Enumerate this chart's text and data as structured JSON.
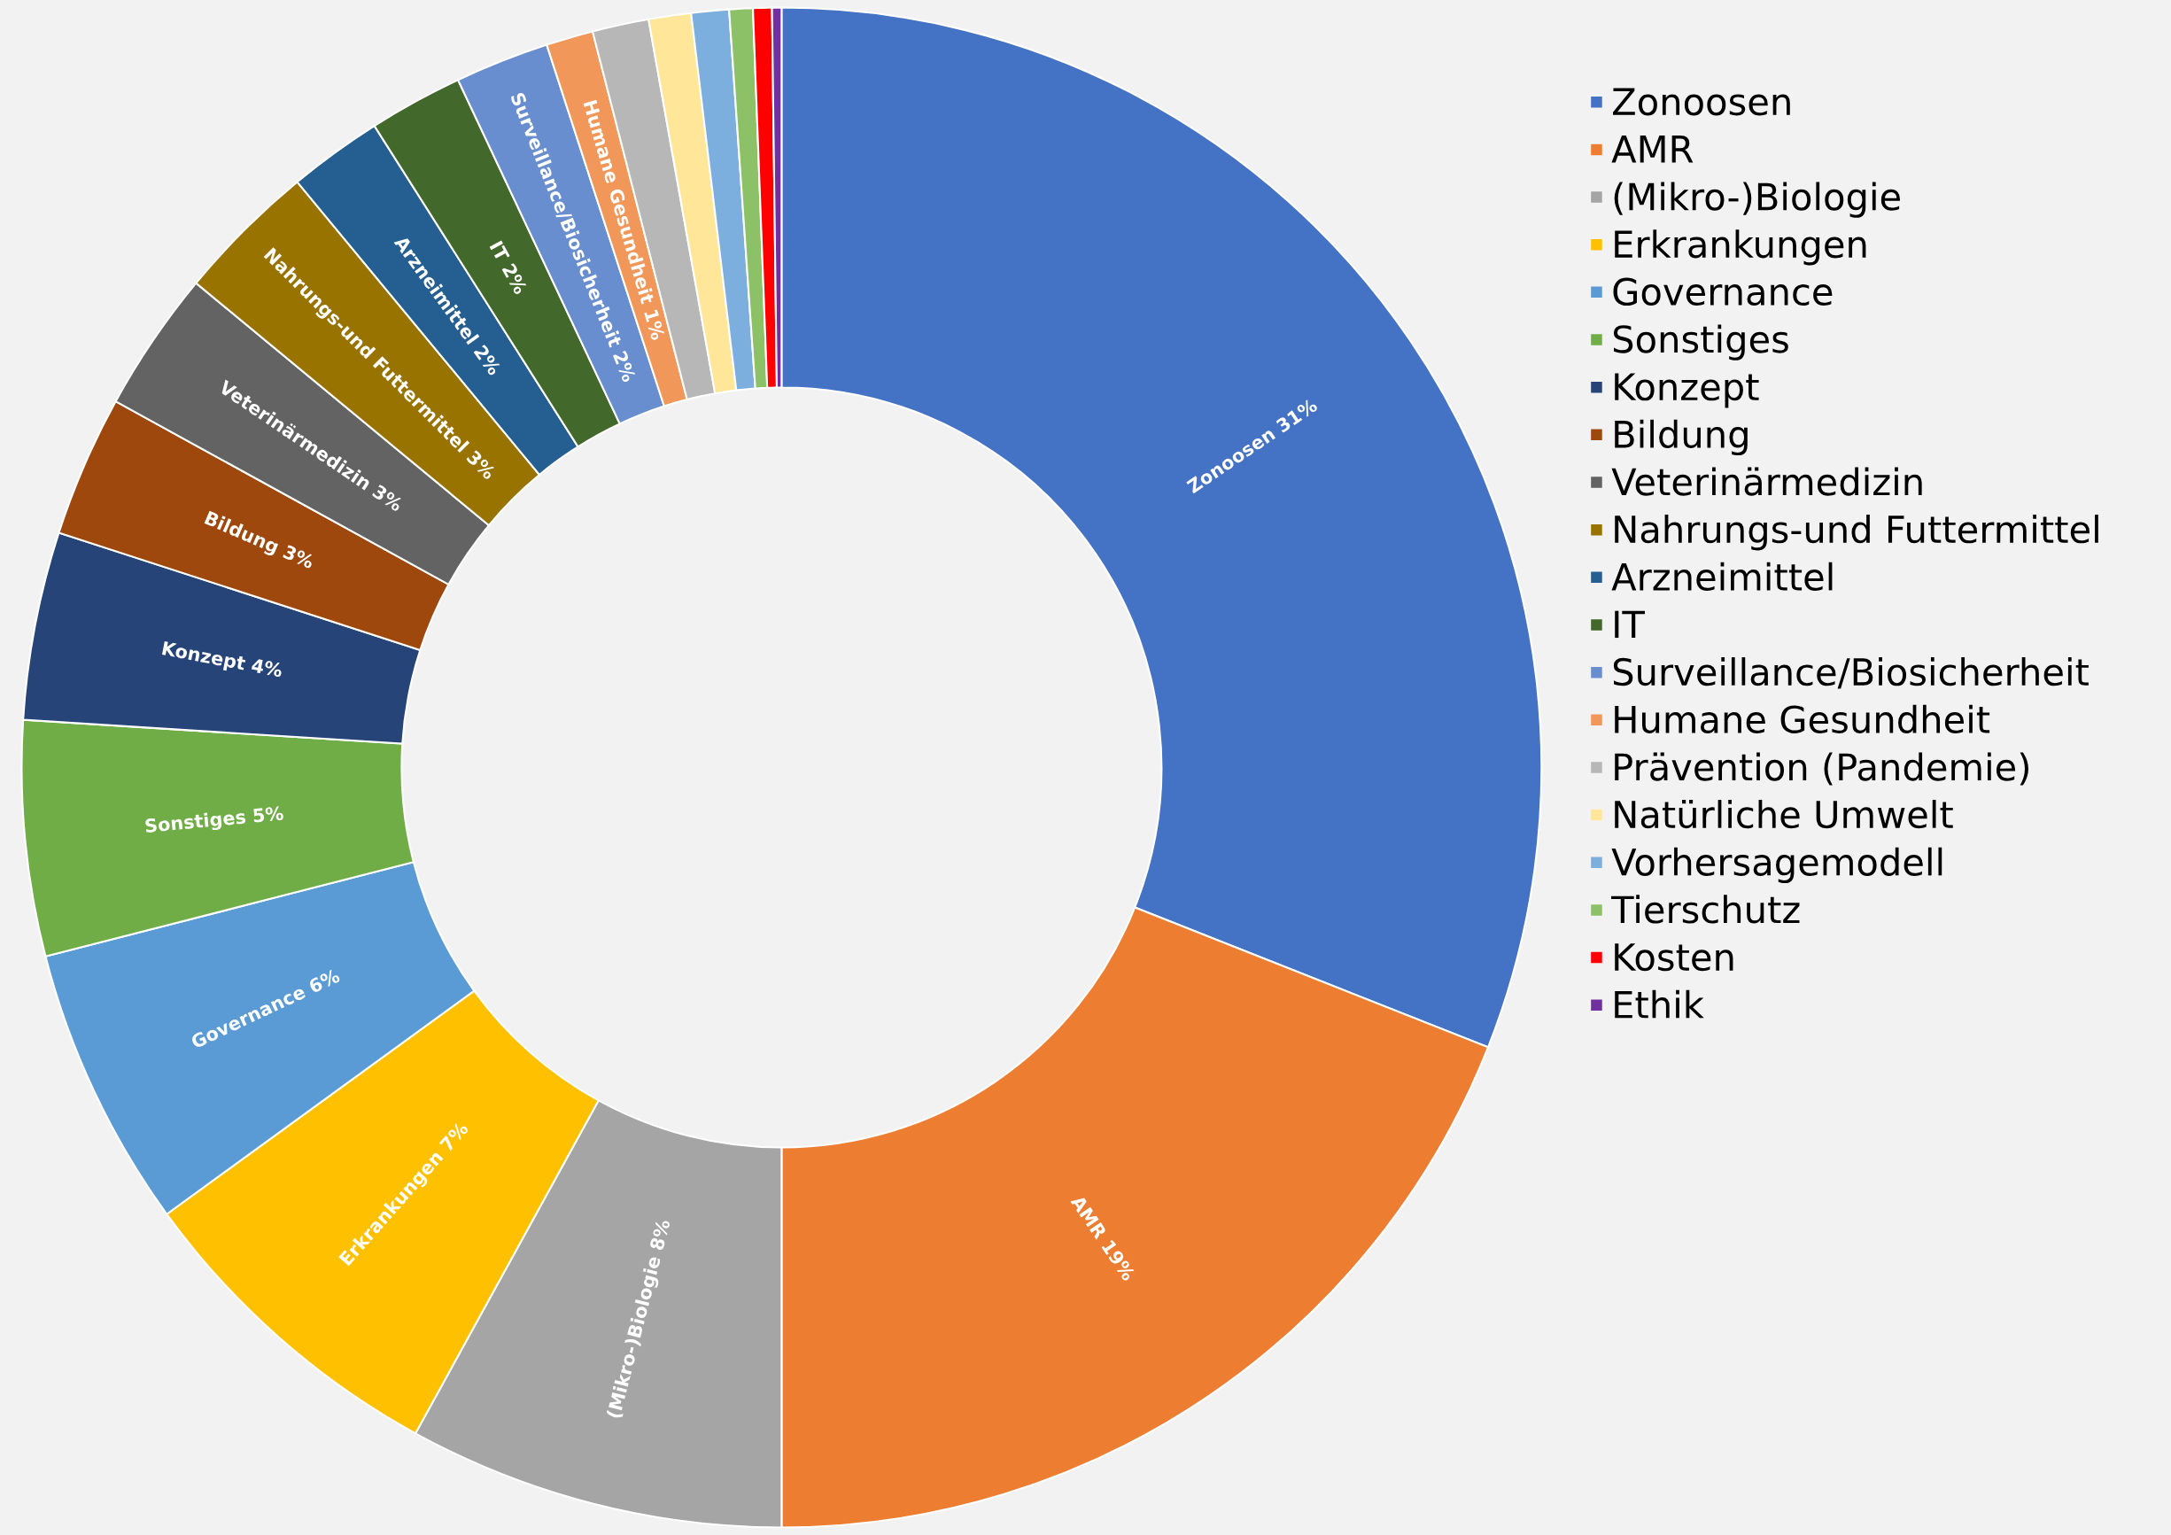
{
  "chart_data": {
    "type": "donut",
    "categories": [
      "Zonoosen",
      "AMR",
      "(Mikro-)Biologie",
      "Erkrankungen",
      "Governance",
      "Sonstiges",
      "Konzept",
      "Bildung",
      "Veterinärmedizin",
      "Nahrungs-und Futtermittel",
      "Arzneimittel",
      "IT",
      "Surveillance/Biosicherheit",
      "Humane Gesundheit",
      "Prävention (Pandemie)",
      "Natürliche Umwelt",
      "Vorhersagemodell",
      "Tierschutz",
      "Kosten",
      "Ethik"
    ],
    "values": [
      31,
      19,
      8,
      7,
      6,
      5,
      4,
      3,
      3,
      3,
      2,
      2,
      2,
      1,
      1.2,
      0.9,
      0.8,
      0.5,
      0.4,
      0.2
    ],
    "colors": [
      "#4472c4",
      "#ed7d31",
      "#a5a5a5",
      "#ffc000",
      "#5b9bd5",
      "#70ad47",
      "#264478",
      "#9e480e",
      "#636363",
      "#997300",
      "#255e91",
      "#43682b",
      "#698ed0",
      "#f1975a",
      "#b7b7b7",
      "#ffe699",
      "#7cafdd",
      "#8cc168",
      "#ff0000",
      "#7030a0"
    ],
    "value_labels": [
      "Zonoosen 31%",
      "AMR 19%",
      "(Mikro-)Biologie 8%",
      "Erkrankungen 7%",
      "Governance 6%",
      "Sonstiges 5%",
      "Konzept 4%",
      "Bildung 3%",
      "Veterinärmedizin 3%",
      "Nahrungs-und Futtermittel 3%",
      "Arzneimittel 2%",
      "IT 2%",
      "Surveillance/Biosicherheit 2%",
      "Humane Gesundheit 1%",
      null,
      null,
      null,
      null,
      null,
      null
    ],
    "legend": "right"
  }
}
